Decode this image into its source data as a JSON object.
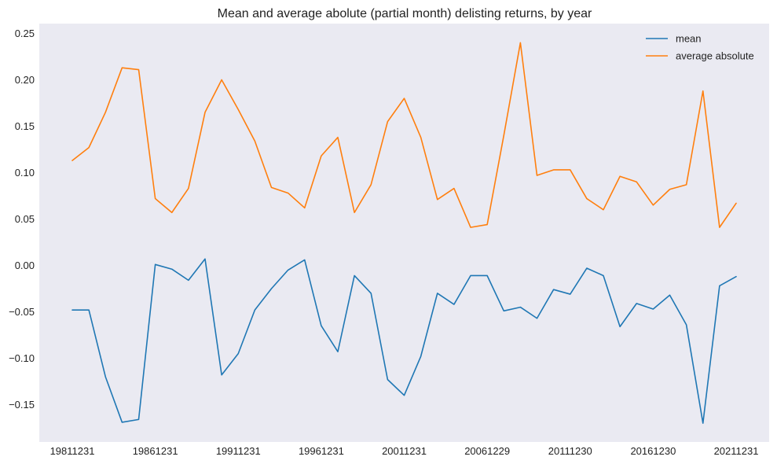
{
  "chart_data": {
    "type": "line",
    "title": "Mean and average abolute (partial month) delisting returns, by year",
    "xlabel": "",
    "ylabel": "",
    "ylim": [
      -0.18,
      0.26
    ],
    "grid": false,
    "background": "#eaeaf2",
    "legend_position": "top-right",
    "x": [
      1981,
      1982,
      1983,
      1984,
      1985,
      1986,
      1987,
      1988,
      1989,
      1990,
      1991,
      1992,
      1993,
      1994,
      1995,
      1996,
      1997,
      1998,
      1999,
      2000,
      2001,
      2002,
      2003,
      2004,
      2005,
      2006,
      2007,
      2008,
      2009,
      2010,
      2011,
      2012,
      2013,
      2014,
      2015,
      2016,
      2017,
      2018,
      2019,
      2020,
      2021
    ],
    "xticks": [
      {
        "x": 1981,
        "label": "19811231"
      },
      {
        "x": 1986,
        "label": "19861231"
      },
      {
        "x": 1991,
        "label": "19911231"
      },
      {
        "x": 1996,
        "label": "19961231"
      },
      {
        "x": 2001,
        "label": "20011231"
      },
      {
        "x": 2006,
        "label": "20061229"
      },
      {
        "x": 2011,
        "label": "20111230"
      },
      {
        "x": 2016,
        "label": "20161230"
      },
      {
        "x": 2021,
        "label": "20211231"
      }
    ],
    "yticks": [
      {
        "value": 0.25,
        "label": "0.25"
      },
      {
        "value": 0.2,
        "label": "0.20"
      },
      {
        "value": 0.15,
        "label": "0.15"
      },
      {
        "value": 0.1,
        "label": "0.10"
      },
      {
        "value": 0.05,
        "label": "0.05"
      },
      {
        "value": 0.0,
        "label": "0.00"
      },
      {
        "value": -0.05,
        "label": "−0.05"
      },
      {
        "value": -0.1,
        "label": "−0.10"
      },
      {
        "value": -0.15,
        "label": "−0.15"
      }
    ],
    "series": [
      {
        "name": "mean",
        "color": "#1f77b4",
        "values": [
          -0.048,
          -0.048,
          -0.12,
          -0.169,
          -0.166,
          0.001,
          -0.004,
          -0.016,
          0.007,
          -0.118,
          -0.095,
          -0.048,
          -0.025,
          -0.005,
          0.006,
          -0.065,
          -0.093,
          -0.011,
          -0.03,
          -0.123,
          -0.14,
          -0.098,
          -0.03,
          -0.042,
          -0.011,
          -0.011,
          -0.049,
          -0.045,
          -0.057,
          -0.026,
          -0.031,
          -0.003,
          -0.011,
          -0.066,
          -0.041,
          -0.047,
          -0.032,
          -0.064,
          -0.17,
          -0.022,
          -0.012
        ]
      },
      {
        "name": "average absolute",
        "color": "#ff7f0e",
        "values": [
          0.113,
          0.127,
          0.165,
          0.213,
          0.211,
          0.072,
          0.057,
          0.083,
          0.165,
          0.2,
          0.168,
          0.134,
          0.084,
          0.078,
          0.062,
          0.118,
          0.138,
          0.057,
          0.087,
          0.155,
          0.18,
          0.138,
          0.071,
          0.083,
          0.041,
          0.044,
          0.14,
          0.24,
          0.097,
          0.103,
          0.103,
          0.072,
          0.06,
          0.096,
          0.09,
          0.065,
          0.082,
          0.087,
          0.188,
          0.041,
          0.067
        ]
      }
    ]
  }
}
